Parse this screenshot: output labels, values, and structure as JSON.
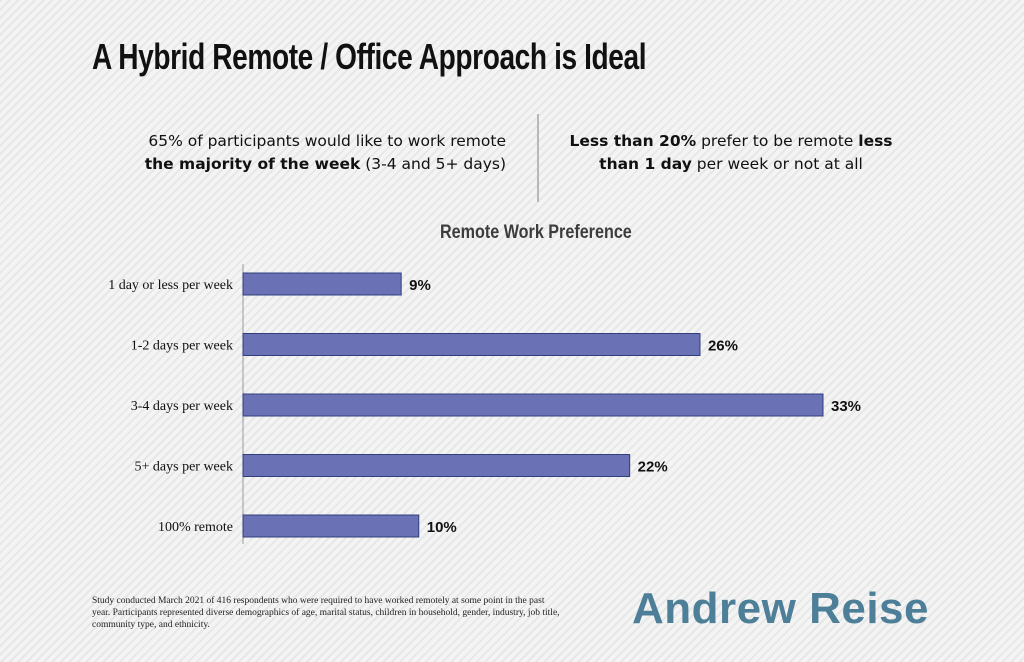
{
  "header": {
    "title": "A Hybrid Remote / Office Approach is Ideal"
  },
  "blurbs": {
    "left_line1": "65% of participants would like to work remote",
    "left_line2_bold": "the majority of the week",
    "left_line2_rest": " (3-4 and 5+ days)",
    "right_bold1": "Less than 20%",
    "right_text1": " prefer to be remote ",
    "right_bold2": "less",
    "right_bold3": "than 1 day",
    "right_text2": " per week or not at all"
  },
  "chart_data": {
    "type": "bar",
    "orientation": "horizontal",
    "title": "Remote Work Preference",
    "categories": [
      "1 day or less per week",
      "1-2 days per week",
      "3-4 days per week",
      "5+ days per week",
      "100% remote"
    ],
    "values": [
      9,
      26,
      33,
      22,
      10
    ],
    "data_labels": [
      "9%",
      "26%",
      "33%",
      "22%",
      "10%"
    ],
    "xlim": [
      0,
      33
    ],
    "grid": false,
    "bar_color": "#6a72b5"
  },
  "footnote": "Study conducted March 2021 of 416 respondents who were required to have worked remotely at some point in the past year. Participants represented diverse demographics of age, marital status, children in household, gender, industry, job title, community type, and ethnicity.",
  "brand": "Andrew Reise",
  "colors": {
    "bar": "#6a72b5",
    "bar_border": "#2f3f7a",
    "brand": "#4d7f98"
  }
}
